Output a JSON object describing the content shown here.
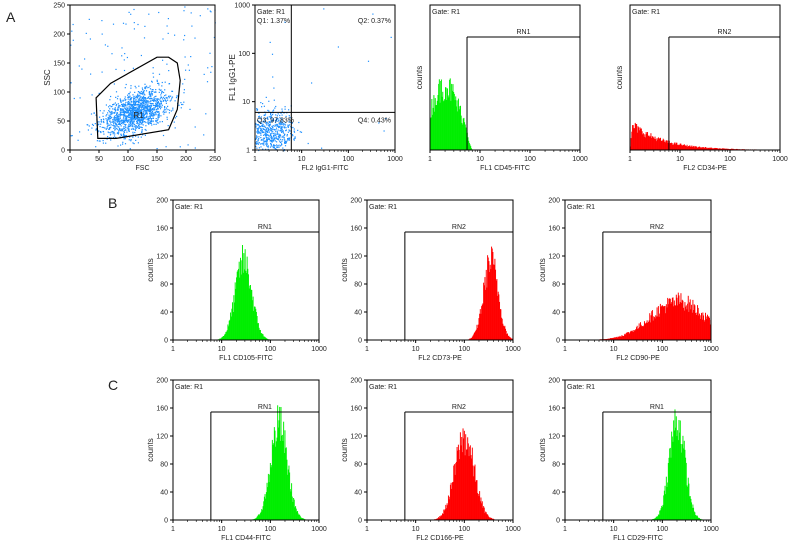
{
  "panel_letters": [
    "A",
    "B",
    "C"
  ],
  "colors": {
    "green": "#00ee00",
    "red": "#ff0000",
    "blue": "#1e90ff",
    "frame": "#000000"
  },
  "chart_data": [
    {
      "id": "A1",
      "type": "scatter",
      "gate_text": "",
      "xlabel": "FSC",
      "ylabel": "SSC",
      "xlim": [
        0,
        250
      ],
      "ylim": [
        0,
        250
      ],
      "xticks": [
        "0",
        "50",
        "100",
        "150",
        "200",
        "250"
      ],
      "yticks": [
        "0",
        "50",
        "100",
        "150",
        "200",
        "250"
      ],
      "region_label": "R1",
      "gate_polygon": [
        [
          45,
          90
        ],
        [
          70,
          115
        ],
        [
          150,
          160
        ],
        [
          170,
          160
        ],
        [
          185,
          150
        ],
        [
          190,
          120
        ],
        [
          185,
          70
        ],
        [
          170,
          35
        ],
        [
          80,
          20
        ],
        [
          48,
          20
        ]
      ],
      "cluster": {
        "x_mean": 110,
        "y_mean": 65,
        "x_sd": 28,
        "y_sd": 18,
        "n": 1500
      },
      "color": "blue"
    },
    {
      "id": "A2",
      "type": "scatter",
      "gate_text": "Gate: R1",
      "xlabel": "FL2 IgG1-FITC",
      "ylabel": "FL1 IgG1-PE",
      "xscale": "log",
      "yscale": "log",
      "xlim": [
        1,
        1000
      ],
      "ylim": [
        1,
        1000
      ],
      "xticks": [
        "1",
        "10",
        "100",
        "1000"
      ],
      "yticks": [
        "1",
        "10",
        "100",
        "1000"
      ],
      "quadrant_lines": {
        "x": 6,
        "y": 6
      },
      "quadrants": [
        {
          "label": "Q1: 1.37%",
          "corner": "top-left"
        },
        {
          "label": "Q2: 0.37%",
          "corner": "top-right"
        },
        {
          "label": "Q3: 97.83%",
          "corner": "bottom-left"
        },
        {
          "label": "Q4: 0.43%",
          "corner": "bottom-right"
        }
      ],
      "cluster": {
        "x_center": 2,
        "y_center": 2.5,
        "n": 600
      },
      "color": "blue"
    },
    {
      "id": "A3",
      "type": "histogram",
      "gate_text": "Gate: R1",
      "region": "RN1",
      "xlabel": "FL1 CD45-FITC",
      "ylabel": "counts",
      "xscale": "log",
      "xlim": [
        1,
        1000
      ],
      "ylim": [
        0,
        200
      ],
      "xticks": [
        "1",
        "10",
        "100",
        "1000"
      ],
      "yticks": [],
      "gate_start": 5.5,
      "dist": {
        "mode": "edge",
        "center": 2,
        "sd": 0.3,
        "height": 90
      },
      "color": "green"
    },
    {
      "id": "A4",
      "type": "histogram",
      "gate_text": "Gate: R1",
      "region": "RN2",
      "xlabel": "FL2 CD34-PE",
      "ylabel": "counts",
      "xscale": "log",
      "xlim": [
        1,
        1000
      ],
      "ylim": [
        0,
        200
      ],
      "xticks": [
        "1",
        "10",
        "100",
        "1000"
      ],
      "yticks": [],
      "gate_start": 6,
      "dist": {
        "mode": "decay",
        "center": 1.5,
        "sd": 0.4,
        "height": 35
      },
      "color": "red"
    },
    {
      "id": "B1",
      "type": "histogram",
      "gate_text": "Gate: R1",
      "region": "RN1",
      "xlabel": "FL1 CD105-FITC",
      "ylabel": "counts",
      "xscale": "log",
      "xlim": [
        1,
        1000
      ],
      "ylim": [
        0,
        200
      ],
      "xticks": [
        "1",
        "10",
        "100",
        "1000"
      ],
      "yticks": [
        "0",
        "40",
        "80",
        "120",
        "160",
        "200"
      ],
      "gate_start": 6,
      "dist": {
        "mode": "normal",
        "center": 28,
        "sd": 0.17,
        "height": 115
      },
      "color": "green"
    },
    {
      "id": "B2",
      "type": "histogram",
      "gate_text": "Gate: R1",
      "region": "RN2",
      "xlabel": "FL2 CD73-PE",
      "ylabel": "counts",
      "xscale": "log",
      "xlim": [
        1,
        1000
      ],
      "ylim": [
        0,
        200
      ],
      "xticks": [
        "1",
        "10",
        "100",
        "1000"
      ],
      "yticks": [
        "0",
        "40",
        "80",
        "120",
        "160",
        "200"
      ],
      "gate_start": 6,
      "dist": {
        "mode": "normal",
        "center": 350,
        "sd": 0.15,
        "height": 115
      },
      "color": "red"
    },
    {
      "id": "B3",
      "type": "histogram",
      "gate_text": "Gate: R1",
      "region": "RN2",
      "xlabel": "FL2 CD90-PE",
      "ylabel": "counts",
      "xscale": "log",
      "xlim": [
        1,
        1000
      ],
      "ylim": [
        0,
        200
      ],
      "xticks": [
        "1",
        "10",
        "100",
        "1000"
      ],
      "yticks": [
        "0",
        "40",
        "80",
        "120",
        "160",
        "200"
      ],
      "gate_start": 6,
      "dist": {
        "mode": "broad",
        "center": 200,
        "sd": 0.55,
        "height": 55
      },
      "color": "red"
    },
    {
      "id": "C1",
      "type": "histogram",
      "gate_text": "Gate: R1",
      "region": "RN1",
      "xlabel": "FL1 CD44-FITC",
      "ylabel": "counts",
      "xscale": "log",
      "xlim": [
        1,
        1000
      ],
      "ylim": [
        0,
        200
      ],
      "xticks": [
        "1",
        "10",
        "100",
        "1000"
      ],
      "yticks": [
        "0",
        "40",
        "80",
        "120",
        "160",
        "200"
      ],
      "gate_start": 6,
      "dist": {
        "mode": "normal",
        "center": 150,
        "sd": 0.17,
        "height": 140
      },
      "color": "green"
    },
    {
      "id": "C2",
      "type": "histogram",
      "gate_text": "Gate: R1",
      "region": "RN2",
      "xlabel": "FL2 CD166-PE",
      "ylabel": "counts",
      "xscale": "log",
      "xlim": [
        1,
        1000
      ],
      "ylim": [
        0,
        200
      ],
      "xticks": [
        "1",
        "10",
        "100",
        "1000"
      ],
      "yticks": [
        "0",
        "40",
        "80",
        "120",
        "160",
        "200"
      ],
      "gate_start": 6,
      "dist": {
        "mode": "normal",
        "center": 100,
        "sd": 0.2,
        "height": 120
      },
      "color": "red"
    },
    {
      "id": "C3",
      "type": "histogram",
      "gate_text": "Gate: R1",
      "region": "RN1",
      "xlabel": "FL1 CD29-FITC",
      "ylabel": "counts",
      "xscale": "log",
      "xlim": [
        1,
        1000
      ],
      "ylim": [
        0,
        200
      ],
      "xticks": [
        "1",
        "10",
        "100",
        "1000"
      ],
      "yticks": [
        "0",
        "40",
        "80",
        "120",
        "160",
        "200"
      ],
      "gate_start": 6,
      "dist": {
        "mode": "normal",
        "center": 200,
        "sd": 0.16,
        "height": 145
      },
      "color": "green"
    }
  ]
}
